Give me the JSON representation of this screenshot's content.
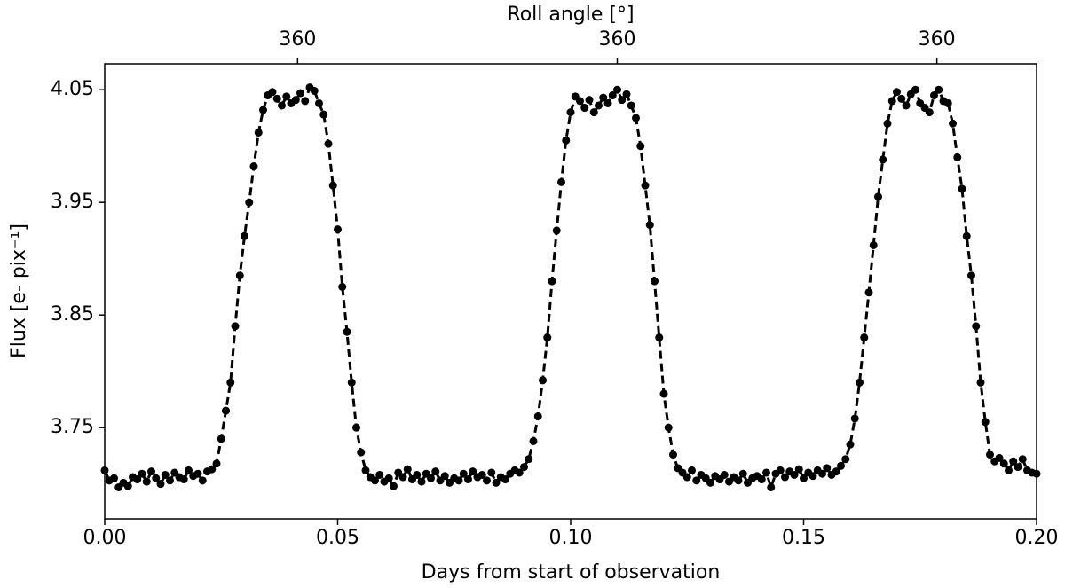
{
  "chart_data": {
    "type": "line",
    "title": "Roll angle [°]",
    "xlabel": "Days from start of observation",
    "ylabel": "Flux [e- pix⁻¹]",
    "color": "#000000",
    "line_style": "dashed",
    "markers": true,
    "xlim": [
      0,
      0.2
    ],
    "ylim": [
      3.669,
      4.073
    ],
    "xticks": [
      {
        "value": 0,
        "label": "0.00"
      },
      {
        "value": 0.05,
        "label": "0.05"
      },
      {
        "value": 0.1,
        "label": "0.10"
      },
      {
        "value": 0.15,
        "label": "0.15"
      },
      {
        "value": 0.2,
        "label": "0.20"
      }
    ],
    "x2ticks": [
      {
        "value": 0.0414,
        "label": "360"
      },
      {
        "value": 0.11,
        "label": "360"
      },
      {
        "value": 0.1786,
        "label": "360"
      }
    ],
    "yticks": [
      3.75,
      3.85,
      3.95,
      4.05
    ],
    "x": [
      0,
      0.001,
      0.002,
      0.003,
      0.004,
      0.005,
      0.006,
      0.007,
      0.008,
      0.009,
      0.01,
      0.011,
      0.012,
      0.013,
      0.014,
      0.015,
      0.016,
      0.017,
      0.018,
      0.019,
      0.02,
      0.021,
      0.022,
      0.023,
      0.024,
      0.025,
      0.026,
      0.027,
      0.028,
      0.029,
      0.03,
      0.031,
      0.032,
      0.033,
      0.034,
      0.035,
      0.036,
      0.037,
      0.038,
      0.039,
      0.04,
      0.041,
      0.042,
      0.043,
      0.044,
      0.045,
      0.046,
      0.047,
      0.048,
      0.049,
      0.05,
      0.051,
      0.052,
      0.053,
      0.054,
      0.055,
      0.056,
      0.057,
      0.058,
      0.059,
      0.06,
      0.061,
      0.062,
      0.063,
      0.064,
      0.065,
      0.066,
      0.067,
      0.068,
      0.069,
      0.07,
      0.071,
      0.072,
      0.073,
      0.074,
      0.075,
      0.076,
      0.077,
      0.078,
      0.079,
      0.08,
      0.081,
      0.082,
      0.083,
      0.084,
      0.085,
      0.086,
      0.087,
      0.088,
      0.089,
      0.09,
      0.091,
      0.092,
      0.093,
      0.094,
      0.095,
      0.096,
      0.097,
      0.098,
      0.099,
      0.1,
      0.101,
      0.102,
      0.103,
      0.104,
      0.105,
      0.106,
      0.107,
      0.108,
      0.109,
      0.11,
      0.111,
      0.112,
      0.113,
      0.114,
      0.115,
      0.116,
      0.117,
      0.118,
      0.119,
      0.12,
      0.121,
      0.122,
      0.123,
      0.124,
      0.125,
      0.126,
      0.127,
      0.128,
      0.129,
      0.13,
      0.131,
      0.132,
      0.133,
      0.134,
      0.135,
      0.136,
      0.137,
      0.138,
      0.139,
      0.14,
      0.141,
      0.142,
      0.143,
      0.144,
      0.145,
      0.146,
      0.147,
      0.148,
      0.149,
      0.15,
      0.151,
      0.152,
      0.153,
      0.154,
      0.155,
      0.156,
      0.157,
      0.158,
      0.159,
      0.16,
      0.161,
      0.162,
      0.163,
      0.164,
      0.165,
      0.166,
      0.167,
      0.168,
      0.169,
      0.17,
      0.171,
      0.172,
      0.173,
      0.174,
      0.175,
      0.176,
      0.177,
      0.178,
      0.179,
      0.18,
      0.181,
      0.182,
      0.183,
      0.184,
      0.185,
      0.186,
      0.187,
      0.188,
      0.189,
      0.19,
      0.191,
      0.192,
      0.193,
      0.194,
      0.195,
      0.196,
      0.197,
      0.198,
      0.199,
      0.2
    ],
    "values": [
      3.712,
      3.703,
      3.705,
      3.697,
      3.701,
      3.698,
      3.706,
      3.704,
      3.709,
      3.702,
      3.711,
      3.705,
      3.7,
      3.708,
      3.703,
      3.71,
      3.706,
      3.704,
      3.712,
      3.707,
      3.709,
      3.703,
      3.711,
      3.713,
      3.718,
      3.74,
      3.765,
      3.79,
      3.84,
      3.885,
      3.92,
      3.95,
      3.982,
      4.012,
      4.032,
      4.045,
      4.048,
      4.042,
      4.036,
      4.044,
      4.038,
      4.041,
      4.047,
      4.04,
      4.052,
      4.049,
      4.038,
      4.028,
      4.002,
      3.965,
      3.926,
      3.875,
      3.835,
      3.79,
      3.75,
      3.728,
      3.712,
      3.706,
      3.703,
      3.708,
      3.702,
      3.705,
      3.698,
      3.71,
      3.706,
      3.713,
      3.704,
      3.708,
      3.702,
      3.709,
      3.705,
      3.711,
      3.703,
      3.707,
      3.701,
      3.705,
      3.703,
      3.709,
      3.704,
      3.711,
      3.706,
      3.708,
      3.703,
      3.71,
      3.701,
      3.706,
      3.704,
      3.709,
      3.712,
      3.71,
      3.715,
      3.722,
      3.738,
      3.76,
      3.792,
      3.83,
      3.88,
      3.925,
      3.968,
      4.005,
      4.03,
      4.044,
      4.04,
      4.034,
      4.041,
      4.03,
      4.036,
      4.043,
      4.038,
      4.045,
      4.05,
      4.041,
      4.046,
      4.036,
      4.025,
      4.0,
      3.965,
      3.93,
      3.88,
      3.83,
      3.78,
      3.75,
      3.726,
      3.714,
      3.71,
      3.706,
      3.712,
      3.703,
      3.708,
      3.705,
      3.701,
      3.707,
      3.704,
      3.708,
      3.702,
      3.706,
      3.703,
      3.709,
      3.701,
      3.705,
      3.707,
      3.704,
      3.71,
      3.697,
      3.709,
      3.712,
      3.706,
      3.711,
      3.708,
      3.713,
      3.705,
      3.71,
      3.707,
      3.712,
      3.709,
      3.714,
      3.708,
      3.711,
      3.716,
      3.722,
      3.735,
      3.758,
      3.79,
      3.83,
      3.87,
      3.912,
      3.955,
      3.988,
      4.02,
      4.04,
      4.048,
      4.042,
      4.036,
      4.046,
      4.05,
      4.038,
      4.034,
      4.03,
      4.045,
      4.05,
      4.04,
      4.038,
      4.02,
      3.99,
      3.962,
      3.92,
      3.885,
      3.84,
      3.79,
      3.755,
      3.726,
      3.72,
      3.723,
      3.718,
      3.712,
      3.72,
      3.715,
      3.722,
      3.712,
      3.71,
      3.709
    ]
  }
}
